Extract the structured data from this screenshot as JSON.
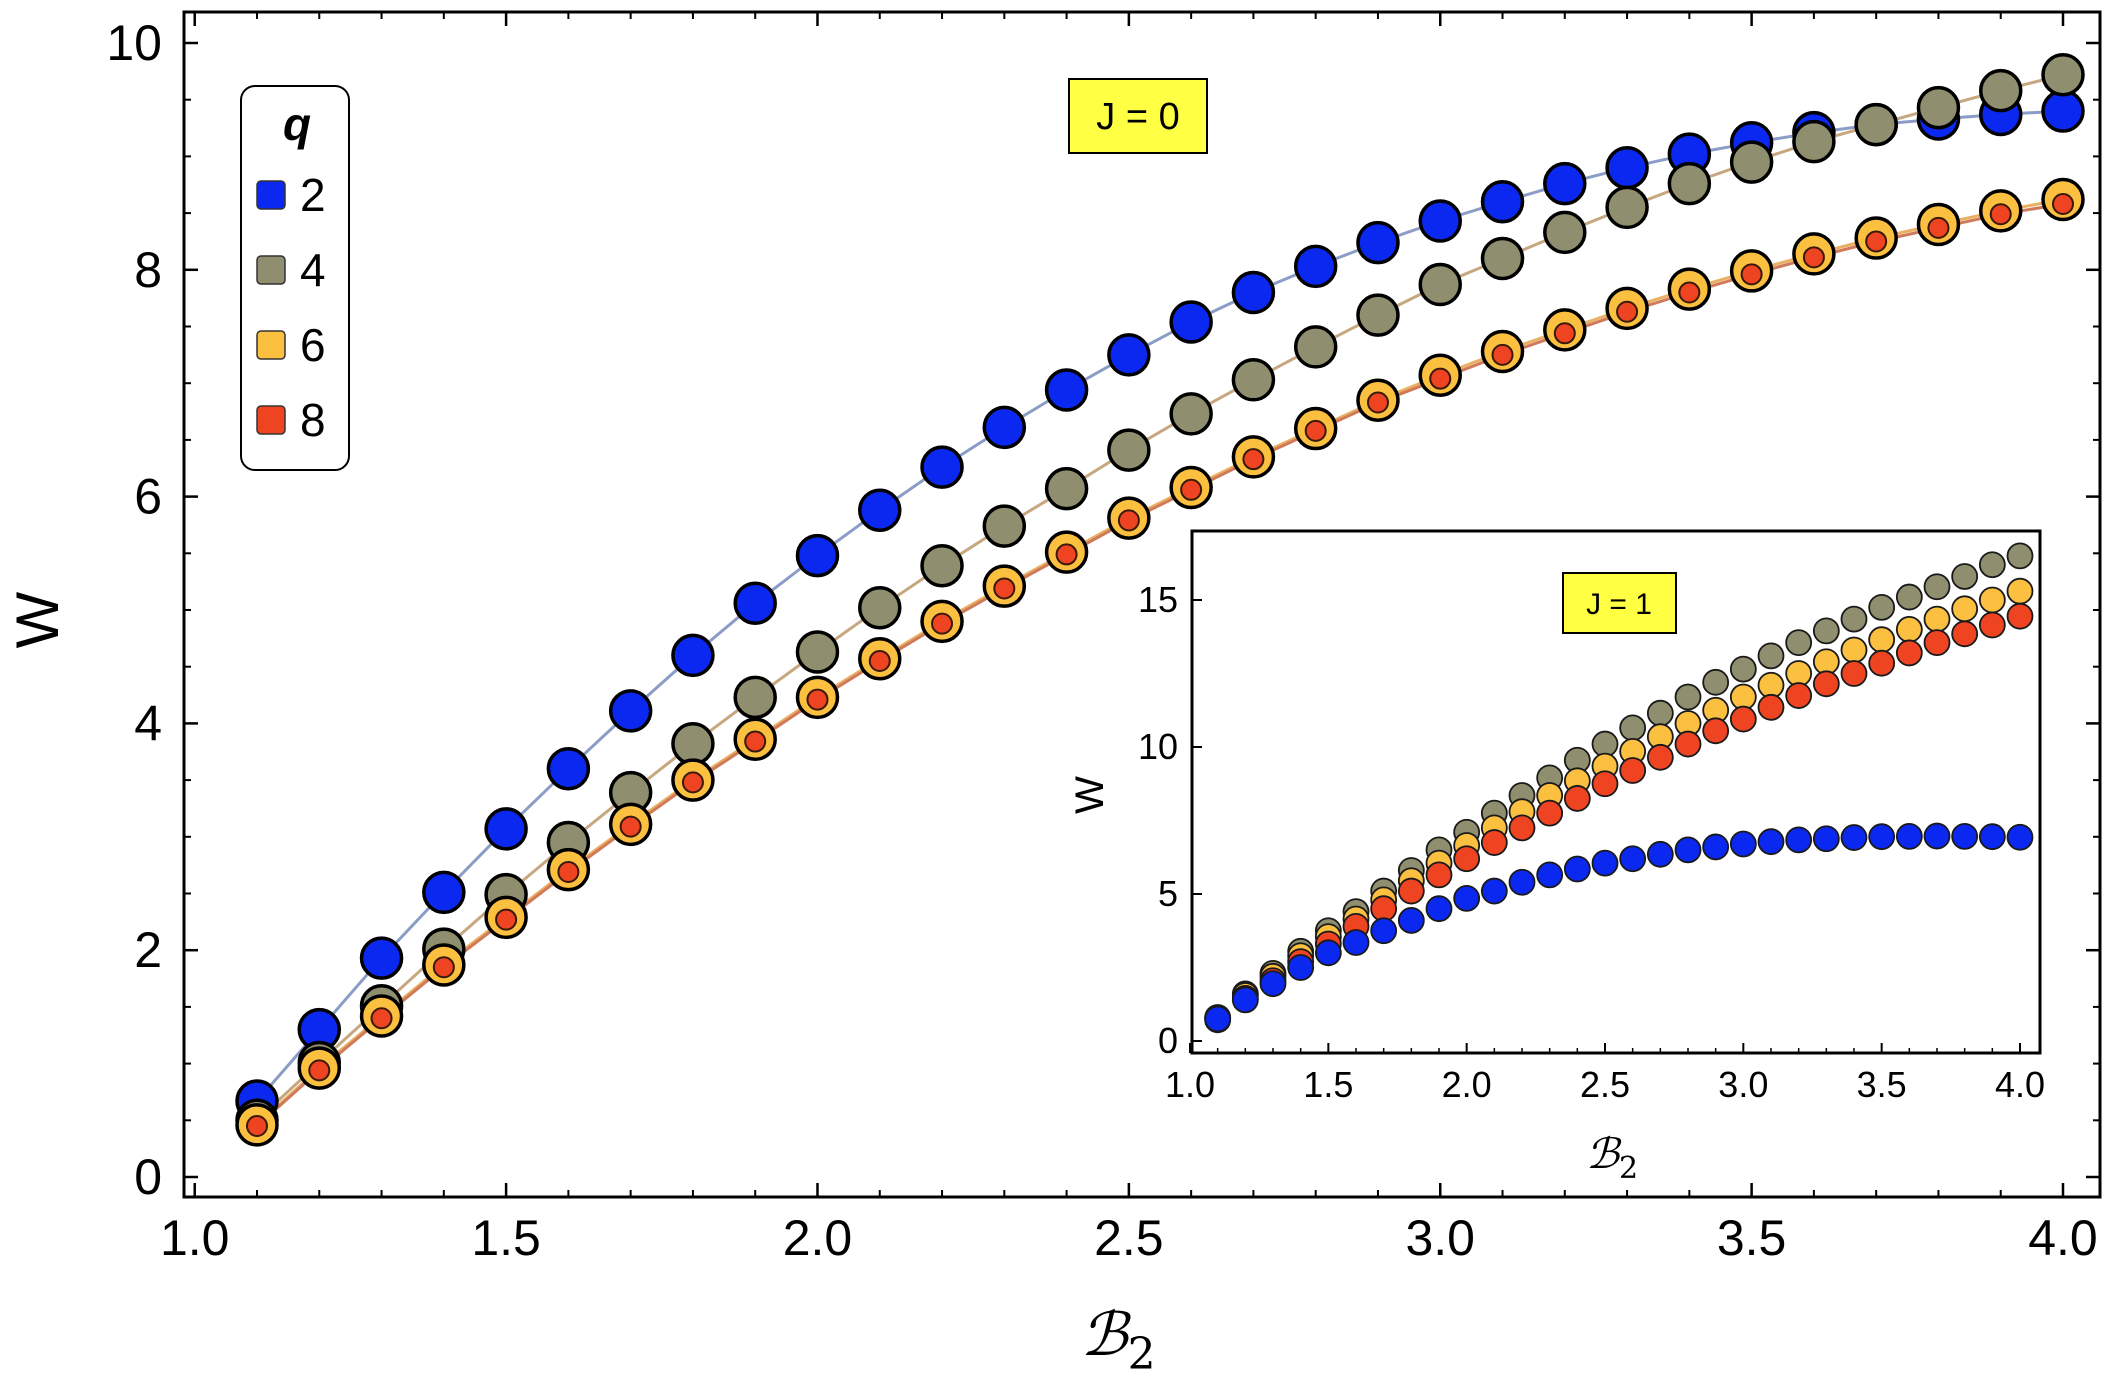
{
  "chart_data": [
    {
      "type": "scatter",
      "panel": "main",
      "annotation": "J = 0",
      "xlabel": "ℬ",
      "xlabel_sub": "2",
      "ylabel": "W",
      "xlim": [
        1.0,
        4.0
      ],
      "ylim": [
        0,
        10
      ],
      "x_ticks": [
        "1.0",
        "1.5",
        "2.0",
        "2.5",
        "3.0",
        "3.5",
        "4.0"
      ],
      "y_ticks": [
        "0",
        "2",
        "4",
        "6",
        "8",
        "10"
      ],
      "legend": {
        "title": "q",
        "position": "top-left",
        "entries": [
          "2",
          "4",
          "6",
          "8"
        ]
      },
      "x": [
        1.1,
        1.2,
        1.3,
        1.4,
        1.5,
        1.6,
        1.7,
        1.8,
        1.9,
        2.0,
        2.1,
        2.2,
        2.3,
        2.4,
        2.5,
        2.6,
        2.7,
        2.8,
        2.9,
        3.0,
        3.1,
        3.2,
        3.3,
        3.4,
        3.5,
        3.6,
        3.7,
        3.8,
        3.9,
        4.0
      ],
      "series": [
        {
          "name": "2",
          "color": "#0a28f0",
          "line_color": "#8b9dc6",
          "values": [
            0.67,
            1.3,
            1.93,
            2.51,
            3.07,
            3.6,
            4.11,
            4.6,
            5.06,
            5.48,
            5.88,
            6.26,
            6.61,
            6.94,
            7.25,
            7.54,
            7.8,
            8.03,
            8.24,
            8.43,
            8.6,
            8.76,
            8.9,
            9.02,
            9.12,
            9.21,
            9.28,
            9.33,
            9.37,
            9.4
          ]
        },
        {
          "name": "4",
          "color": "#8f8f6f",
          "line_color": "#c7a77f",
          "values": [
            0.5,
            1.01,
            1.51,
            2.01,
            2.49,
            2.95,
            3.39,
            3.82,
            4.23,
            4.63,
            5.02,
            5.39,
            5.74,
            6.07,
            6.41,
            6.73,
            7.03,
            7.32,
            7.6,
            7.87,
            8.1,
            8.33,
            8.55,
            8.76,
            8.95,
            9.13,
            9.28,
            9.43,
            9.58,
            9.72
          ]
        },
        {
          "name": "6",
          "color": "#fcc040",
          "line_color": "#e9b063",
          "values": [
            0.46,
            0.96,
            1.42,
            1.87,
            2.29,
            2.71,
            3.11,
            3.5,
            3.86,
            4.23,
            4.57,
            4.9,
            5.21,
            5.51,
            5.81,
            6.08,
            6.35,
            6.6,
            6.85,
            7.07,
            7.28,
            7.47,
            7.66,
            7.83,
            7.99,
            8.14,
            8.28,
            8.4,
            8.52,
            8.62
          ]
        },
        {
          "name": "8",
          "color": "#ee4422",
          "line_color": "#d07a5a",
          "values": [
            0.45,
            0.94,
            1.4,
            1.85,
            2.27,
            2.69,
            3.09,
            3.48,
            3.84,
            4.21,
            4.55,
            4.88,
            5.19,
            5.49,
            5.79,
            6.06,
            6.33,
            6.58,
            6.83,
            7.04,
            7.25,
            7.44,
            7.63,
            7.8,
            7.96,
            8.11,
            8.25,
            8.37,
            8.49,
            8.58
          ]
        }
      ]
    },
    {
      "type": "scatter",
      "panel": "inset",
      "annotation": "J = 1",
      "xlabel": "ℬ",
      "xlabel_sub": "2",
      "ylabel": "W",
      "xlim": [
        1.0,
        4.0
      ],
      "ylim": [
        0,
        17
      ],
      "x_ticks": [
        "1.0",
        "1.5",
        "2.0",
        "2.5",
        "3.0",
        "3.5",
        "4.0"
      ],
      "y_ticks": [
        "0",
        "5",
        "10",
        "15"
      ],
      "x": [
        1.1,
        1.2,
        1.3,
        1.4,
        1.5,
        1.6,
        1.7,
        1.8,
        1.9,
        2.0,
        2.1,
        2.2,
        2.3,
        2.4,
        2.5,
        2.6,
        2.7,
        2.8,
        2.9,
        3.0,
        3.1,
        3.2,
        3.3,
        3.4,
        3.5,
        3.6,
        3.7,
        3.8,
        3.9,
        4.0
      ],
      "series": [
        {
          "name": "2",
          "color": "#0a28f0",
          "values": [
            0.75,
            1.4,
            1.95,
            2.5,
            3.0,
            3.35,
            3.75,
            4.1,
            4.5,
            4.85,
            5.1,
            5.4,
            5.65,
            5.85,
            6.05,
            6.2,
            6.35,
            6.5,
            6.6,
            6.7,
            6.78,
            6.84,
            6.88,
            6.92,
            6.95,
            6.96,
            6.97,
            6.96,
            6.95,
            6.93
          ]
        },
        {
          "name": "4",
          "color": "#8f8f6f",
          "values": [
            0.8,
            1.6,
            2.3,
            3.05,
            3.75,
            4.4,
            5.1,
            5.8,
            6.5,
            7.1,
            7.75,
            8.35,
            8.95,
            9.55,
            10.1,
            10.65,
            11.15,
            11.7,
            12.2,
            12.65,
            13.1,
            13.55,
            13.95,
            14.35,
            14.75,
            15.1,
            15.45,
            15.8,
            16.2,
            16.5
          ]
        },
        {
          "name": "6",
          "color": "#fcc040",
          "values": [
            0.78,
            1.55,
            2.2,
            2.9,
            3.55,
            4.15,
            4.8,
            5.45,
            6.05,
            6.65,
            7.25,
            7.8,
            8.35,
            8.85,
            9.35,
            9.85,
            10.35,
            10.8,
            11.25,
            11.7,
            12.1,
            12.5,
            12.9,
            13.3,
            13.65,
            14.0,
            14.35,
            14.7,
            15.0,
            15.3
          ]
        },
        {
          "name": "8",
          "color": "#ee4422",
          "values": [
            0.72,
            1.45,
            2.05,
            2.7,
            3.3,
            3.9,
            4.5,
            5.1,
            5.65,
            6.2,
            6.75,
            7.25,
            7.75,
            8.25,
            8.75,
            9.2,
            9.65,
            10.1,
            10.55,
            10.95,
            11.35,
            11.75,
            12.15,
            12.5,
            12.85,
            13.2,
            13.55,
            13.85,
            14.15,
            14.45
          ]
        }
      ]
    }
  ]
}
